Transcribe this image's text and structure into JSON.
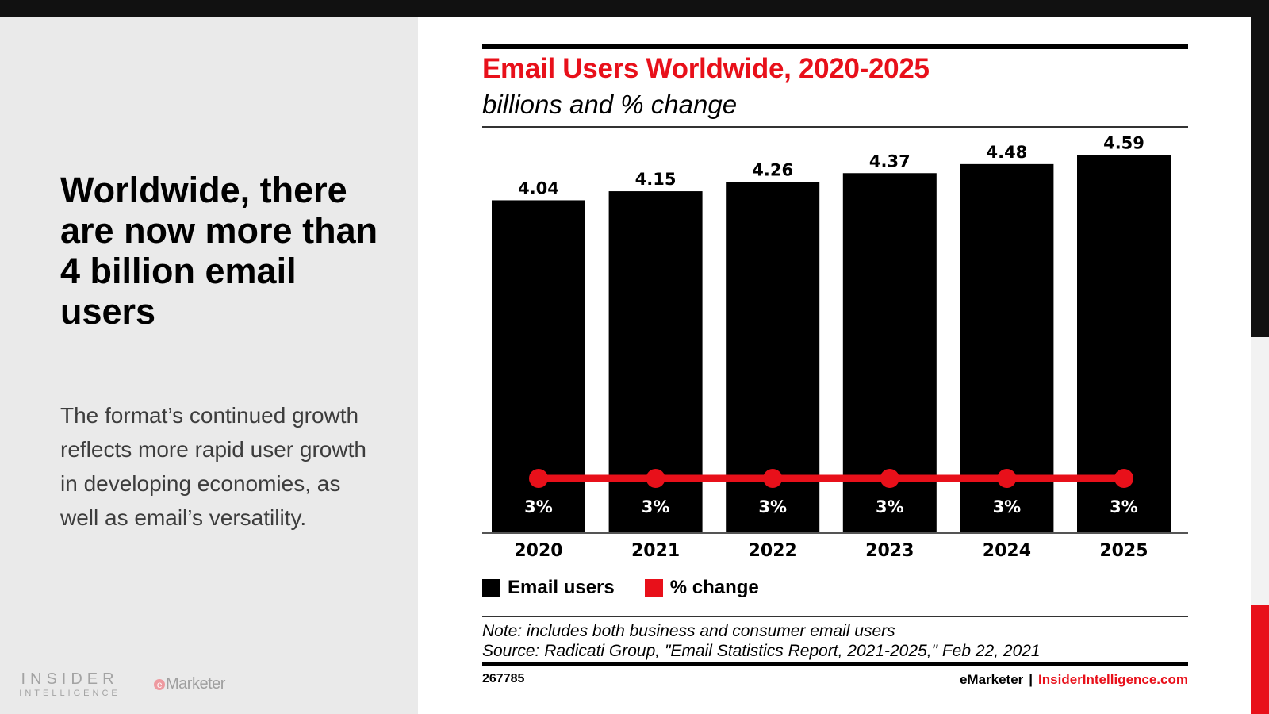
{
  "slide": {
    "headline": "Worldwide, there are now more than 4 billion email users",
    "body": "The format’s continued growth reflects more rapid user growth in developing economies, as well as email’s versatility.",
    "logos": {
      "insider_line1": "INSIDER",
      "insider_line2": "INTELLIGENCE",
      "emarketer_e": "e",
      "emarketer_rest": "Marketer"
    }
  },
  "colors": {
    "accent_red": "#E8101A",
    "bar_black": "#000000",
    "panel_gray": "#EAEAEA"
  },
  "chart_data": {
    "type": "bar",
    "title": "Email Users Worldwide, 2020-2025",
    "subtitle": "billions and % change",
    "categories": [
      "2020",
      "2021",
      "2022",
      "2023",
      "2024",
      "2025"
    ],
    "series": [
      {
        "name": "Email users",
        "type": "bar",
        "color": "#000000",
        "values": [
          4.04,
          4.15,
          4.26,
          4.37,
          4.48,
          4.59
        ],
        "labels": [
          "4.04",
          "4.15",
          "4.26",
          "4.37",
          "4.48",
          "4.59"
        ]
      },
      {
        "name": "% change",
        "type": "line",
        "color": "#E8101A",
        "values": [
          3,
          3,
          3,
          3,
          3,
          3
        ],
        "labels": [
          "3%",
          "3%",
          "3%",
          "3%",
          "3%",
          "3%"
        ]
      }
    ],
    "xlabel": "",
    "ylabel": "",
    "ylim": [
      0,
      4.59
    ],
    "grid": false,
    "legend": "bottom-left",
    "note": "Note: includes both business and consumer email users",
    "source": "Source: Radicati Group, \"Email Statistics Report, 2021-2025,\" Feb 22, 2021",
    "chart_id": "267785",
    "credit_brand": "eMarketer",
    "credit_sep": "|",
    "credit_site": "InsiderIntelligence.com"
  }
}
